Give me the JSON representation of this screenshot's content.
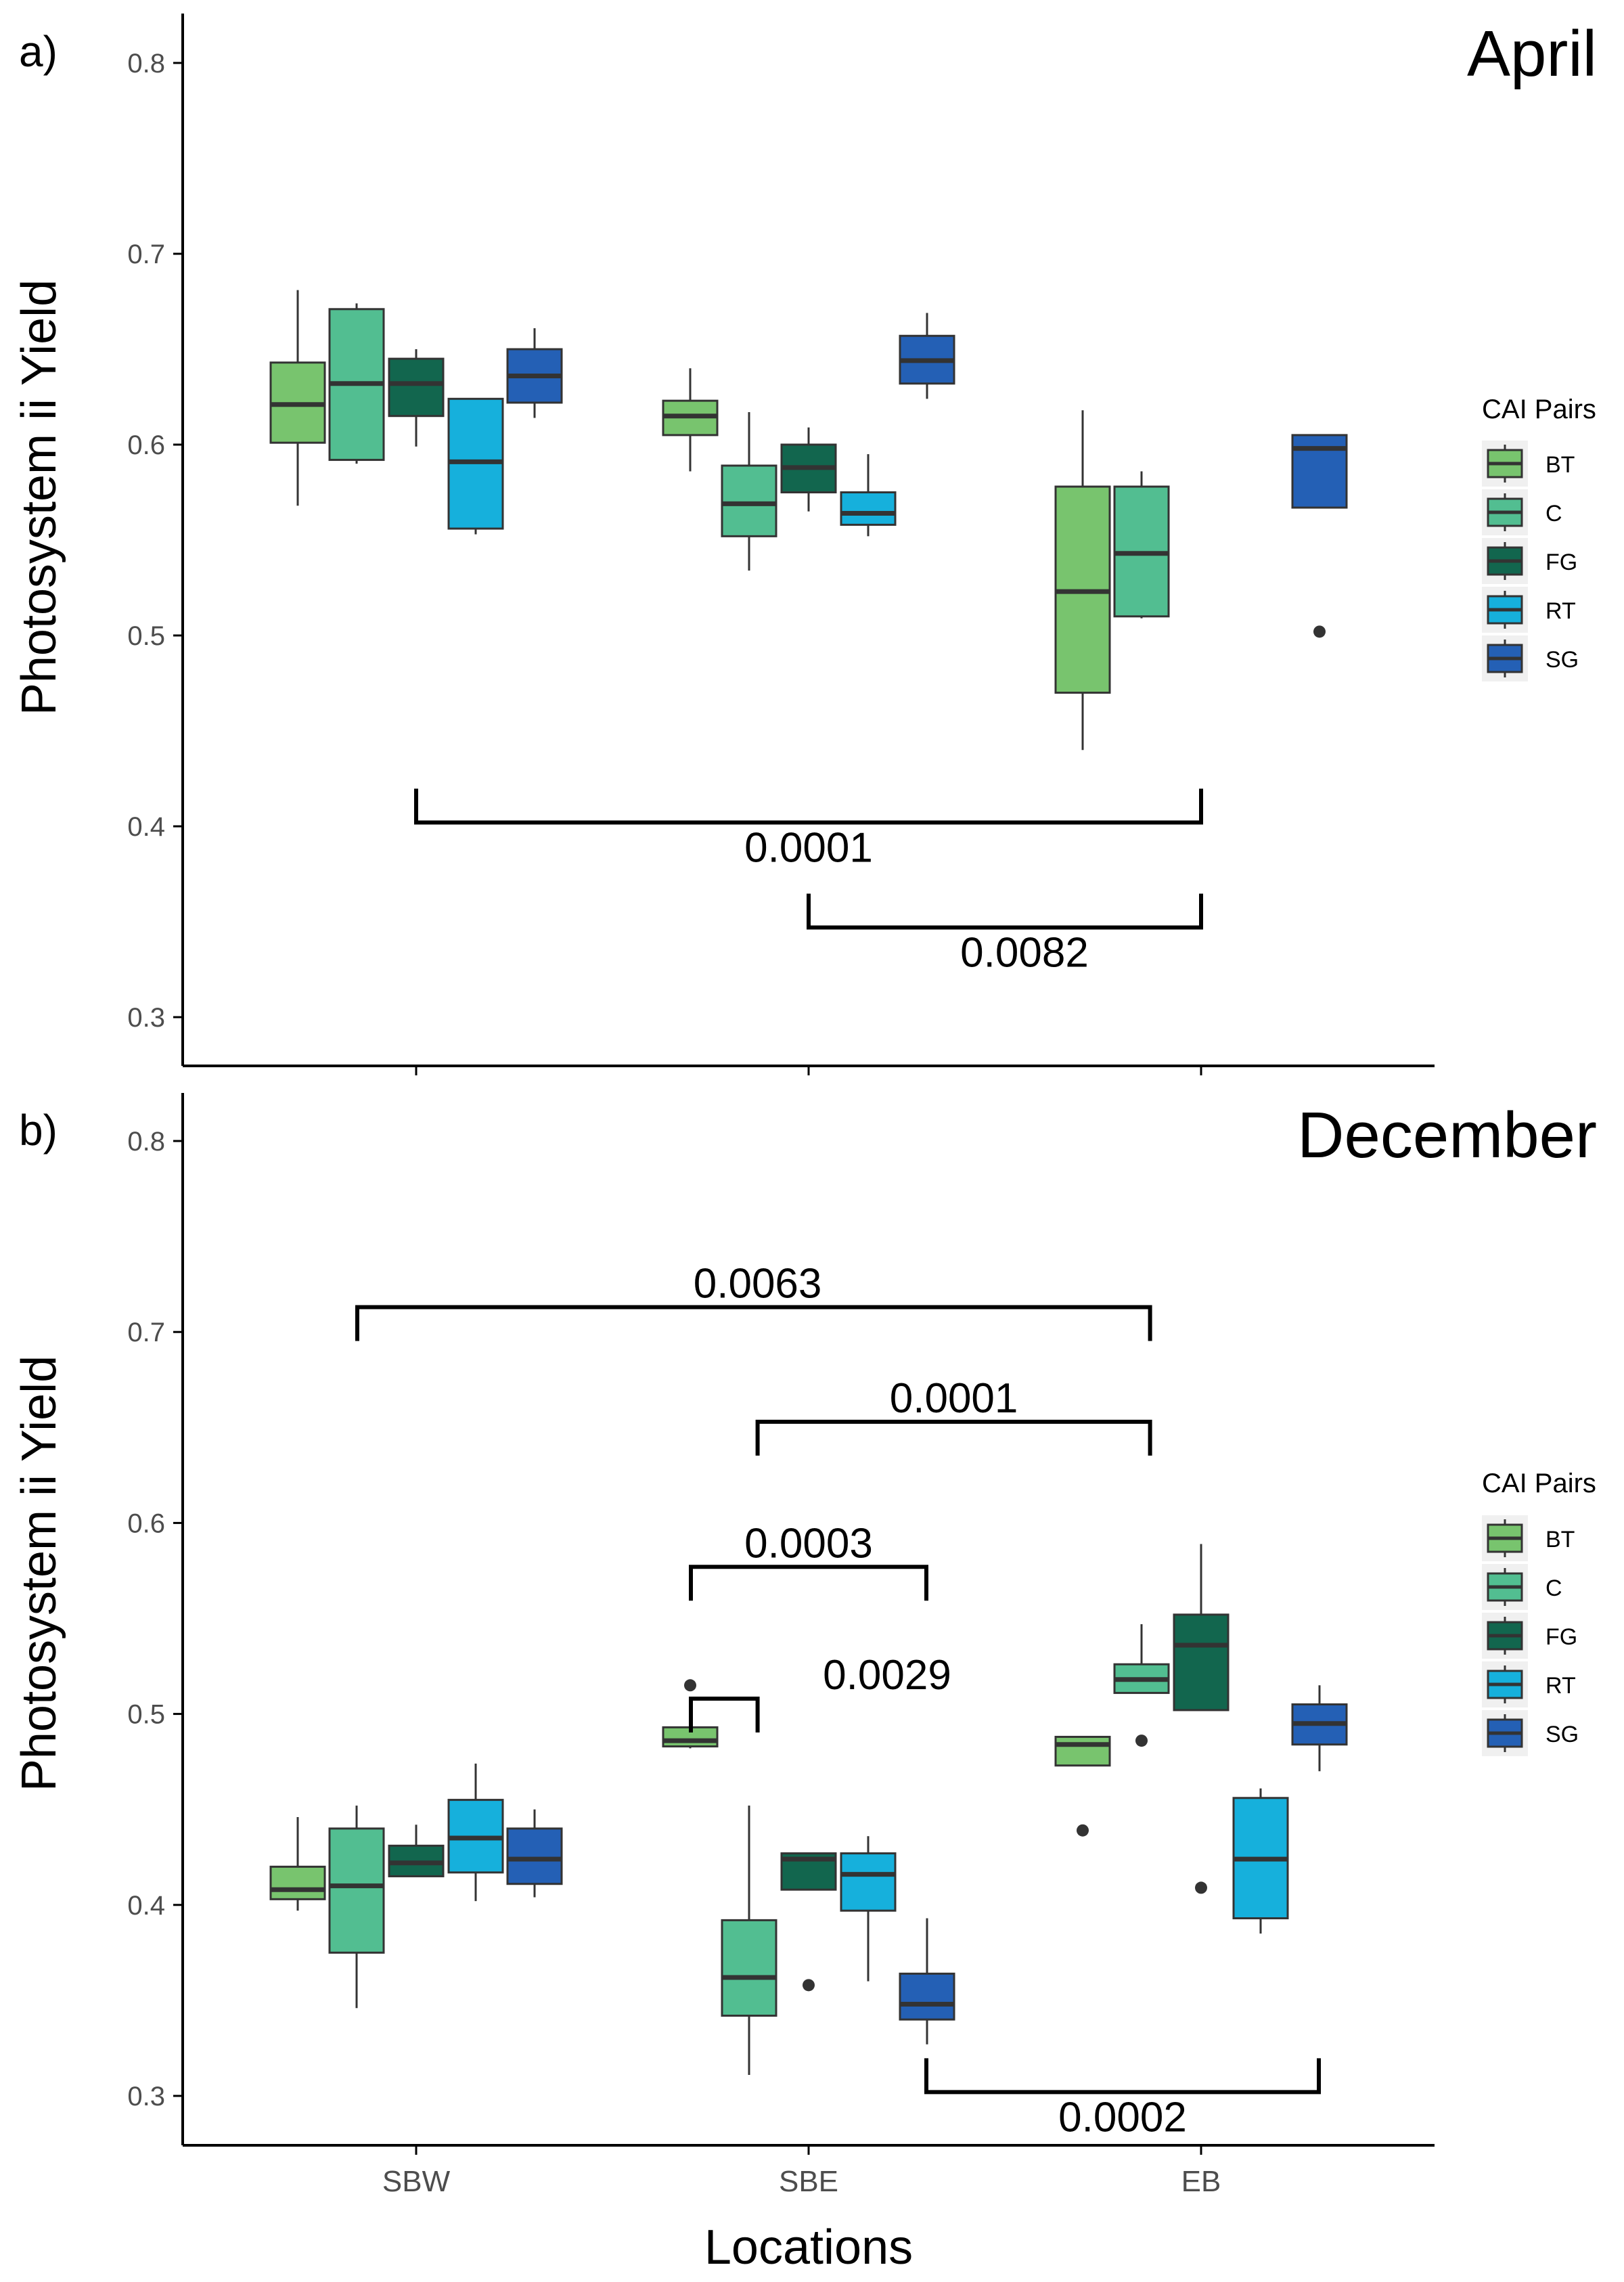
{
  "figure": {
    "xlabel": "Locations",
    "ylabel": "Photosystem ii Yield",
    "legend_title": "CAI Pairs",
    "legend_placement": "right",
    "colors": {
      "BT": "#78C46E",
      "C": "#52BE91",
      "FG": "#12664E",
      "RT": "#16B0DC",
      "SG": "#2460B5",
      "box_line": "#333333",
      "outlier": "#333333",
      "axis": "#000000",
      "bracket": "#000000"
    }
  },
  "chart_data": [
    {
      "type": "boxplot",
      "panel_label": "a)",
      "title": "April",
      "xlabel": "",
      "ylabel": "Photosystem ii Yield",
      "categories": [
        "SBW",
        "SBE",
        "EB"
      ],
      "show_x_tick_labels": false,
      "ylim": [
        0.275,
        0.825
      ],
      "yticks": [
        0.3,
        0.4,
        0.5,
        0.6,
        0.7,
        0.8
      ],
      "grid": false,
      "legend": [
        "BT",
        "C",
        "FG",
        "RT",
        "SG"
      ],
      "boxes": [
        {
          "location": "SBW",
          "group": "BT",
          "min": 0.568,
          "q1": 0.601,
          "median": 0.621,
          "q3": 0.643,
          "max": 0.681,
          "outliers": []
        },
        {
          "location": "SBW",
          "group": "C",
          "min": 0.59,
          "q1": 0.592,
          "median": 0.632,
          "q3": 0.671,
          "max": 0.674,
          "outliers": []
        },
        {
          "location": "SBW",
          "group": "FG",
          "min": 0.599,
          "q1": 0.615,
          "median": 0.632,
          "q3": 0.645,
          "max": 0.65,
          "outliers": []
        },
        {
          "location": "SBW",
          "group": "RT",
          "min": 0.553,
          "q1": 0.556,
          "median": 0.591,
          "q3": 0.624,
          "max": 0.624,
          "outliers": []
        },
        {
          "location": "SBW",
          "group": "SG",
          "min": 0.614,
          "q1": 0.622,
          "median": 0.636,
          "q3": 0.65,
          "max": 0.661,
          "outliers": []
        },
        {
          "location": "SBE",
          "group": "BT",
          "min": 0.586,
          "q1": 0.605,
          "median": 0.615,
          "q3": 0.623,
          "max": 0.64,
          "outliers": []
        },
        {
          "location": "SBE",
          "group": "C",
          "min": 0.534,
          "q1": 0.552,
          "median": 0.569,
          "q3": 0.589,
          "max": 0.617,
          "outliers": []
        },
        {
          "location": "SBE",
          "group": "FG",
          "min": 0.565,
          "q1": 0.575,
          "median": 0.588,
          "q3": 0.6,
          "max": 0.609,
          "outliers": []
        },
        {
          "location": "SBE",
          "group": "RT",
          "min": 0.552,
          "q1": 0.558,
          "median": 0.564,
          "q3": 0.575,
          "max": 0.595,
          "outliers": []
        },
        {
          "location": "SBE",
          "group": "SG",
          "min": 0.624,
          "q1": 0.632,
          "median": 0.644,
          "q3": 0.657,
          "max": 0.669,
          "outliers": []
        },
        {
          "location": "EB",
          "group": "BT",
          "min": 0.44,
          "q1": 0.47,
          "median": 0.523,
          "q3": 0.578,
          "max": 0.618,
          "outliers": []
        },
        {
          "location": "EB",
          "group": "C",
          "min": 0.509,
          "q1": 0.51,
          "median": 0.543,
          "q3": 0.578,
          "max": 0.586,
          "outliers": []
        },
        {
          "location": "EB",
          "group": "SG",
          "min": 0.567,
          "q1": 0.567,
          "median": 0.598,
          "q3": 0.605,
          "max": 0.605,
          "outliers": [
            0.502
          ]
        }
      ],
      "brackets": [
        {
          "from_x": 0.0,
          "to_x": 2.0,
          "y": 0.402,
          "tick_dir": "up",
          "label": "0.0001",
          "label_x": 1.0
        },
        {
          "from_x": 1.0,
          "to_x": 2.0,
          "y": 0.347,
          "tick_dir": "up",
          "label": "0.0082",
          "label_x": 1.55
        }
      ]
    },
    {
      "type": "boxplot",
      "panel_label": "b)",
      "title": "December",
      "xlabel": "Locations",
      "ylabel": "Photosystem ii Yield",
      "categories": [
        "SBW",
        "SBE",
        "EB"
      ],
      "show_x_tick_labels": true,
      "ylim": [
        0.275,
        0.825
      ],
      "yticks": [
        0.3,
        0.4,
        0.5,
        0.6,
        0.7,
        0.8
      ],
      "grid": false,
      "legend": [
        "BT",
        "C",
        "FG",
        "RT",
        "SG"
      ],
      "boxes": [
        {
          "location": "SBW",
          "group": "BT",
          "min": 0.397,
          "q1": 0.403,
          "median": 0.408,
          "q3": 0.42,
          "max": 0.446,
          "outliers": []
        },
        {
          "location": "SBW",
          "group": "C",
          "min": 0.346,
          "q1": 0.375,
          "median": 0.41,
          "q3": 0.44,
          "max": 0.452,
          "outliers": []
        },
        {
          "location": "SBW",
          "group": "FG",
          "min": 0.415,
          "q1": 0.415,
          "median": 0.422,
          "q3": 0.431,
          "max": 0.442,
          "outliers": []
        },
        {
          "location": "SBW",
          "group": "RT",
          "min": 0.402,
          "q1": 0.417,
          "median": 0.435,
          "q3": 0.455,
          "max": 0.474,
          "outliers": []
        },
        {
          "location": "SBW",
          "group": "SG",
          "min": 0.404,
          "q1": 0.411,
          "median": 0.424,
          "q3": 0.44,
          "max": 0.45,
          "outliers": []
        },
        {
          "location": "SBE",
          "group": "BT",
          "min": 0.482,
          "q1": 0.483,
          "median": 0.486,
          "q3": 0.493,
          "max": 0.493,
          "outliers": [
            0.515
          ]
        },
        {
          "location": "SBE",
          "group": "C",
          "min": 0.311,
          "q1": 0.342,
          "median": 0.362,
          "q3": 0.392,
          "max": 0.452,
          "outliers": []
        },
        {
          "location": "SBE",
          "group": "FG",
          "min": 0.408,
          "q1": 0.408,
          "median": 0.424,
          "q3": 0.427,
          "max": 0.427,
          "outliers": [
            0.358
          ]
        },
        {
          "location": "SBE",
          "group": "RT",
          "min": 0.36,
          "q1": 0.397,
          "median": 0.416,
          "q3": 0.427,
          "max": 0.436,
          "outliers": []
        },
        {
          "location": "SBE",
          "group": "SG",
          "min": 0.327,
          "q1": 0.34,
          "median": 0.348,
          "q3": 0.364,
          "max": 0.393,
          "outliers": []
        },
        {
          "location": "EB",
          "group": "BT",
          "min": 0.473,
          "q1": 0.473,
          "median": 0.484,
          "q3": 0.488,
          "max": 0.488,
          "outliers": [
            0.439
          ]
        },
        {
          "location": "EB",
          "group": "C",
          "min": 0.511,
          "q1": 0.511,
          "median": 0.518,
          "q3": 0.526,
          "max": 0.547,
          "outliers": [
            0.486
          ]
        },
        {
          "location": "EB",
          "group": "FG",
          "min": 0.502,
          "q1": 0.502,
          "median": 0.536,
          "q3": 0.552,
          "max": 0.589,
          "outliers": [
            0.409
          ]
        },
        {
          "location": "EB",
          "group": "RT",
          "min": 0.385,
          "q1": 0.393,
          "median": 0.424,
          "q3": 0.456,
          "max": 0.461,
          "outliers": []
        },
        {
          "location": "EB",
          "group": "SG",
          "min": 0.47,
          "q1": 0.484,
          "median": 0.495,
          "q3": 0.505,
          "max": 0.515,
          "outliers": []
        }
      ],
      "brackets": [
        {
          "from_x": -0.15,
          "to_x": 1.87,
          "y": 0.713,
          "tick_dir": "down",
          "label": "0.0063",
          "label_x": 0.87
        },
        {
          "from_x": 0.87,
          "to_x": 1.87,
          "y": 0.653,
          "tick_dir": "down",
          "label": "0.0001",
          "label_x": 1.37
        },
        {
          "from_x": 0.7,
          "to_x": 1.3,
          "y": 0.577,
          "tick_dir": "down",
          "label": "0.0003",
          "label_x": 1.0
        },
        {
          "from_x": 0.7,
          "to_x": 0.87,
          "y": 0.508,
          "tick_dir": "down",
          "label": "0.0029",
          "label_x": 1.2
        },
        {
          "from_x": 1.3,
          "to_x": 2.3,
          "y": 0.302,
          "tick_dir": "up",
          "label": "0.0002",
          "label_x": 1.8
        }
      ]
    }
  ]
}
